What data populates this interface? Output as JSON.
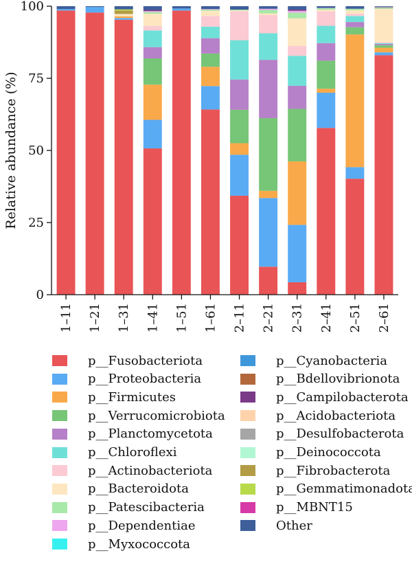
{
  "chart_data": {
    "type": "bar",
    "stacked": true,
    "title": "",
    "xlabel": "",
    "ylabel": "Relative abundance (%)",
    "ylim": [
      0,
      100
    ],
    "yticks": [
      0,
      25,
      50,
      75,
      100
    ],
    "grid": false,
    "legend_position": "bottom",
    "categories": [
      "1–11",
      "1–21",
      "1–31",
      "1–41",
      "1–51",
      "1–61",
      "2–11",
      "2–21",
      "2–31",
      "2–41",
      "2–51",
      "2–61"
    ],
    "series": [
      {
        "name": "p__Fusobacteriota",
        "color": "#e95456",
        "values": [
          98.5,
          97.8,
          95.3,
          50.7,
          98.5,
          64.2,
          34.3,
          9.7,
          4.3,
          57.8,
          40.2,
          83.0
        ]
      },
      {
        "name": "p__Proteobacteria",
        "color": "#59abf4",
        "values": [
          0.5,
          1.9,
          0.6,
          9.9,
          0.7,
          8.1,
          14.2,
          23.8,
          19.9,
          12.2,
          4.0,
          1.0
        ]
      },
      {
        "name": "p__Firmicutes",
        "color": "#faa94a",
        "values": [
          0,
          0,
          0.6,
          12.2,
          0,
          6.7,
          4.0,
          2.5,
          22.0,
          1.4,
          46.0,
          1.6
        ]
      },
      {
        "name": "p__Verrucomicrobiota",
        "color": "#77c577",
        "values": [
          0,
          0,
          0,
          9.1,
          0,
          4.6,
          11.6,
          25.2,
          18.2,
          9.7,
          2.5,
          0.9
        ]
      },
      {
        "name": "p__Planctomycetota",
        "color": "#b681c8",
        "values": [
          0,
          0,
          0,
          3.9,
          0,
          5.3,
          10.5,
          20.2,
          8.0,
          6.1,
          1.8,
          0.4
        ]
      },
      {
        "name": "p__Chloroflexi",
        "color": "#6fe0d8",
        "values": [
          0,
          0,
          0,
          5.8,
          0,
          4.0,
          13.6,
          9.2,
          10.4,
          6.0,
          2.1,
          0.3
        ]
      },
      {
        "name": "p__Actinobacteriota",
        "color": "#fbcad3",
        "values": [
          0,
          0,
          0,
          1.5,
          0,
          3.7,
          10.0,
          6.3,
          3.4,
          5.0,
          0.8,
          0.3
        ]
      },
      {
        "name": "p__Bacteroidota",
        "color": "#fde6c0",
        "values": [
          0,
          0,
          0.8,
          4.3,
          0,
          1.8,
          0.3,
          0.6,
          9.6,
          0.6,
          1.2,
          11.6
        ]
      },
      {
        "name": "p__Patescibacteria",
        "color": "#a8e8a8",
        "values": [
          0,
          0,
          0,
          0.6,
          0,
          0.4,
          0.3,
          1.2,
          2.0,
          0.5,
          0.5,
          0.2
        ]
      },
      {
        "name": "p__Dependentiae",
        "color": "#eea6ee",
        "values": [
          0,
          0,
          0,
          0.3,
          0,
          0.2,
          0,
          0.4,
          0.6,
          0.1,
          0,
          0
        ]
      },
      {
        "name": "p__Myxococcota",
        "color": "#37f0f0",
        "values": [
          0,
          0,
          0,
          0,
          0,
          0,
          0,
          0,
          0,
          0,
          0,
          0
        ]
      },
      {
        "name": "p__Cyanobacteria",
        "color": "#3f97db",
        "values": [
          0,
          0,
          0,
          0,
          0,
          0,
          0,
          0,
          0,
          0,
          0,
          0
        ]
      },
      {
        "name": "p__Bdellovibrionota",
        "color": "#b2683a",
        "values": [
          0,
          0,
          0,
          0,
          0,
          0,
          0,
          0,
          0,
          0,
          0,
          0
        ]
      },
      {
        "name": "p__Campilobacterota",
        "color": "#7b3a88",
        "values": [
          0,
          0,
          0,
          0.4,
          0,
          0,
          0,
          0,
          0.4,
          0,
          0,
          0
        ]
      },
      {
        "name": "p__Acidobacteriota",
        "color": "#fed3ac",
        "values": [
          0,
          0,
          0,
          0,
          0,
          0,
          0,
          0,
          0,
          0,
          0,
          0
        ]
      },
      {
        "name": "p__Desulfobacterota",
        "color": "#a6a6a6",
        "values": [
          0,
          0,
          0,
          0,
          0,
          0,
          0,
          0,
          0,
          0,
          0,
          0.5
        ]
      },
      {
        "name": "p__Deinococcota",
        "color": "#b2f7d4",
        "values": [
          0,
          0,
          0,
          0,
          0,
          0,
          0,
          0,
          0,
          0,
          0,
          0
        ]
      },
      {
        "name": "p__Fibrobacterota",
        "color": "#b39c45",
        "values": [
          0,
          0,
          1.2,
          0,
          0,
          0,
          0,
          0,
          0,
          0,
          0,
          0
        ]
      },
      {
        "name": "p__Gemmatimonadota",
        "color": "#b8d94a",
        "values": [
          0,
          0,
          0.4,
          0,
          0,
          0,
          0,
          0,
          0,
          0,
          0,
          0
        ]
      },
      {
        "name": "p__MBNT15",
        "color": "#d63aa6",
        "values": [
          0,
          0,
          0,
          0,
          0,
          0,
          0,
          0,
          0,
          0,
          0,
          0
        ]
      },
      {
        "name": "Other",
        "color": "#3e5f9a",
        "values": [
          1.0,
          0.3,
          1.1,
          1.3,
          0.8,
          1.0,
          1.2,
          0.9,
          1.2,
          0.6,
          0.9,
          0.2
        ]
      }
    ]
  }
}
